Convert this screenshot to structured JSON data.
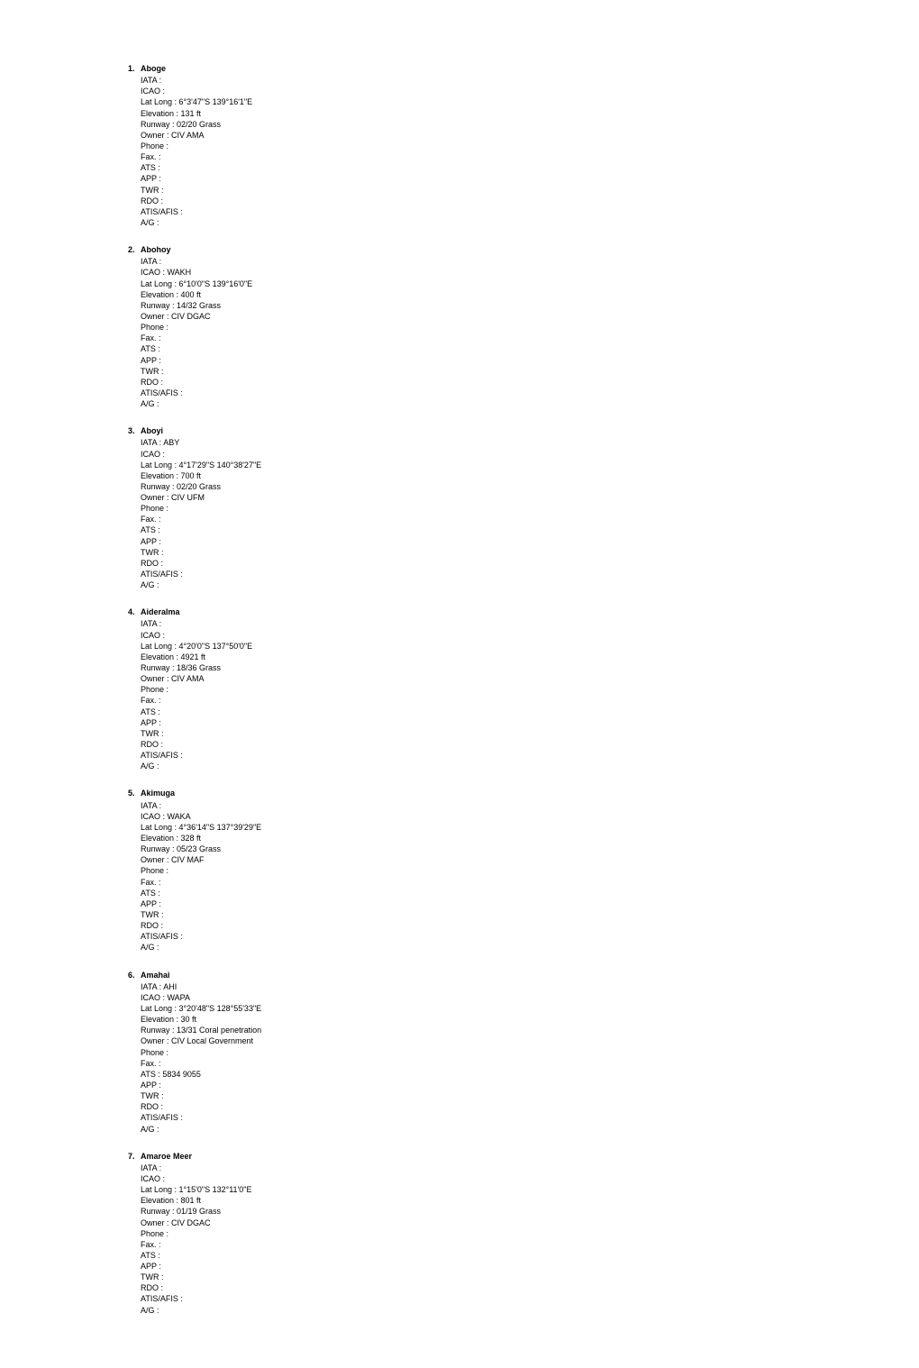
{
  "airports": [
    {
      "name": "Aboge",
      "fields": {
        "iata": "",
        "icao": "",
        "latlong": "6°3'47\"S 139°16'1\"E",
        "elevation": "131 ft",
        "runway": "02/20 Grass",
        "owner": "CIV AMA",
        "phone": "",
        "fax": "",
        "ats": "",
        "app": "",
        "twr": "",
        "rdo": "",
        "atisafis": "",
        "ag": ""
      }
    },
    {
      "name": "Abohoy",
      "fields": {
        "iata": "",
        "icao": "WAKH",
        "latlong": "6°10'0\"S 139°16'0\"E",
        "elevation": "400 ft",
        "runway": "14/32 Grass",
        "owner": "CIV DGAC",
        "phone": "",
        "fax": "",
        "ats": "",
        "app": "",
        "twr": "",
        "rdo": "",
        "atisafis": "",
        "ag": ""
      }
    },
    {
      "name": "Aboyi",
      "fields": {
        "iata": "ABY",
        "icao": "",
        "latlong": "4°17'29\"S 140°38'27\"E",
        "elevation": "700 ft",
        "runway": "02/20 Grass",
        "owner": "CIV UFM",
        "phone": "",
        "fax": "",
        "ats": "",
        "app": "",
        "twr": "",
        "rdo": "",
        "atisafis": "",
        "ag": ""
      }
    },
    {
      "name": "Aideralma",
      "fields": {
        "iata": "",
        "icao": "",
        "latlong": "4°20'0\"S 137°50'0\"E",
        "elevation": "4921 ft",
        "runway": "18/36 Grass",
        "owner": "CIV AMA",
        "phone": "",
        "fax": "",
        "ats": "",
        "app": "",
        "twr": "",
        "rdo": "",
        "atisafis": "",
        "ag": ""
      }
    },
    {
      "name": "Akimuga",
      "fields": {
        "iata": "",
        "icao": "WAKA",
        "latlong": "4°36'14\"S 137°39'29\"E",
        "elevation": "328 ft",
        "runway": "05/23 Grass",
        "owner": "CIV MAF",
        "phone": "",
        "fax": "",
        "ats": "",
        "app": "",
        "twr": "",
        "rdo": "",
        "atisafis": "",
        "ag": ""
      }
    },
    {
      "name": "Amahai",
      "fields": {
        "iata": "AHI",
        "icao": "WAPA",
        "latlong": "3°20'48\"S 128°55'33\"E",
        "elevation": "30 ft",
        "runway": "13/31 Coral penetration",
        "owner": "CIV Local Government",
        "phone": "",
        "fax": "",
        "ats": "5834 9055",
        "app": "",
        "twr": "",
        "rdo": "",
        "atisafis": "",
        "ag": ""
      }
    },
    {
      "name": "Amaroe Meer",
      "fields": {
        "iata": "",
        "icao": "",
        "latlong": "1°15'0\"S 132°11'0\"E",
        "elevation": "801 ft",
        "runway": "01/19 Grass",
        "owner": "CIV DGAC",
        "phone": "",
        "fax": "",
        "ats": "",
        "app": "",
        "twr": "",
        "rdo": "",
        "atisafis": "",
        "ag": ""
      }
    }
  ],
  "labels": {
    "iata": "IATA : ",
    "icao": "ICAO : ",
    "latlong": "Lat Long : ",
    "elevation": "Elevation : ",
    "runway": "Runway : ",
    "owner": "Owner : ",
    "phone": "Phone : ",
    "fax": "Fax. : ",
    "ats": "ATS : ",
    "app": "APP : ",
    "twr": "TWR : ",
    "rdo": "RDO : ",
    "atisafis": "ATIS/AFIS : ",
    "ag": "A/G : "
  },
  "fieldOrder": [
    "iata",
    "icao",
    "latlong",
    "elevation",
    "runway",
    "owner",
    "phone",
    "fax",
    "ats",
    "app",
    "twr",
    "rdo",
    "atisafis",
    "ag"
  ]
}
